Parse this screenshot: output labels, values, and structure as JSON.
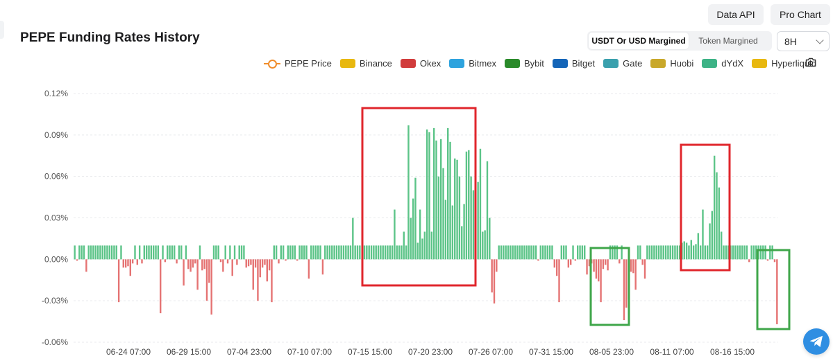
{
  "title": "PEPE Funding Rates History",
  "buttons": {
    "data_api": "Data API",
    "pro_chart": "Pro Chart"
  },
  "margin_toggle": {
    "usdt": "USDT Or USD Margined",
    "token": "Token Margined",
    "selected": "USDT Or USD Margined"
  },
  "interval": {
    "selected": "8H"
  },
  "legend": [
    {
      "label": "PEPE Price",
      "color": "#f08c2a",
      "kind": "line"
    },
    {
      "label": "Binance",
      "color": "#e8b80f",
      "kind": "bar"
    },
    {
      "label": "Okex",
      "color": "#d13c3c",
      "kind": "bar"
    },
    {
      "label": "Bitmex",
      "color": "#2ea3de",
      "kind": "bar"
    },
    {
      "label": "Bybit",
      "color": "#2a8a2a",
      "kind": "bar"
    },
    {
      "label": "Bitget",
      "color": "#1465b8",
      "kind": "bar"
    },
    {
      "label": "Gate",
      "color": "#3aa0ad",
      "kind": "bar"
    },
    {
      "label": "Huobi",
      "color": "#c9a82a",
      "kind": "bar"
    },
    {
      "label": "dYdX",
      "color": "#3db386",
      "kind": "bar"
    },
    {
      "label": "Hyperliquid",
      "color": "#e8b80f",
      "kind": "bar"
    }
  ],
  "chart_data": {
    "type": "bar",
    "title": "PEPE Funding Rates History",
    "series_name": "dYdX",
    "y_unit": "%",
    "ylim": [
      -0.06,
      0.12
    ],
    "y_ticks": [
      "0.12%",
      "0.09%",
      "0.06%",
      "0.03%",
      "0.00%",
      "-0.03%",
      "-0.06%"
    ],
    "x_ticks": [
      "06-24 07:00",
      "06-29 15:00",
      "07-04 23:00",
      "07-10 07:00",
      "07-15 15:00",
      "07-20 23:00",
      "07-26 07:00",
      "07-31 15:00",
      "08-05 23:00",
      "08-11 07:00",
      "08-16 15:00"
    ],
    "positive_color": "#5cc488",
    "negative_color": "#e57373",
    "grid": true,
    "baseline_positive_value": 0.01,
    "values": [
      0.01,
      -0.001,
      0.01,
      0.01,
      0.01,
      -0.009,
      0.01,
      0.01,
      0.01,
      0.01,
      0.01,
      0.01,
      0.01,
      0.01,
      0.01,
      0.01,
      0.01,
      0.01,
      0.01,
      -0.031,
      0.01,
      -0.006,
      -0.006,
      -0.005,
      -0.012,
      -0.003,
      0.01,
      -0.004,
      0.01,
      -0.003,
      0.01,
      0.01,
      0.01,
      0.01,
      0.01,
      0.01,
      0.01,
      -0.039,
      0.01,
      -0.002,
      0.01,
      0.01,
      0.01,
      0.01,
      -0.003,
      0.01,
      0.01,
      -0.019,
      0.01,
      -0.007,
      -0.009,
      -0.006,
      -0.003,
      -0.022,
      0.01,
      -0.008,
      -0.007,
      -0.03,
      -0.017,
      -0.04,
      0.01,
      0.01,
      0.01,
      -0.002,
      -0.009,
      0.01,
      -0.003,
      0.01,
      -0.012,
      0.01,
      -0.004,
      0.01,
      0.01,
      0.01,
      -0.006,
      -0.005,
      -0.004,
      -0.022,
      -0.006,
      -0.03,
      -0.013,
      -0.006,
      -0.004,
      -0.016,
      -0.008,
      -0.031,
      0.01,
      0.01,
      -0.003,
      0.01,
      0.01,
      -0.001,
      0.01,
      0.01,
      0.01,
      0.01,
      -0.001,
      0.01,
      0.01,
      0.01,
      0.01,
      -0.014,
      0.01,
      0.01,
      0.01,
      0.01,
      0.01,
      -0.011,
      0.01,
      0.01,
      0.01,
      0.01,
      0.01,
      0.01,
      0.01,
      0.01,
      0.01,
      0.01,
      0.01,
      0.01,
      0.03,
      0.01,
      0.01,
      0.01,
      0.01,
      0.01,
      0.01,
      0.01,
      0.01,
      0.01,
      0.01,
      0.01,
      0.01,
      0.01,
      0.01,
      0.01,
      0.01,
      0.01,
      0.036,
      0.01,
      0.01,
      0.01,
      0.02,
      0.01,
      0.097,
      0.03,
      0.044,
      0.059,
      0.012,
      0.036,
      0.015,
      0.02,
      0.094,
      0.092,
      0.02,
      0.095,
      0.086,
      0.06,
      0.087,
      0.066,
      0.043,
      0.095,
      0.085,
      0.039,
      0.073,
      0.072,
      0.06,
      0.024,
      0.04,
      0.078,
      0.079,
      0.06,
      0.05,
      0.034,
      0.056,
      0.08,
      0.02,
      0.021,
      0.071,
      0.03,
      -0.024,
      -0.032,
      -0.009,
      0.01,
      0.01,
      0.01,
      0.01,
      0.01,
      0.01,
      0.01,
      0.01,
      0.01,
      0.01,
      0.01,
      0.01,
      0.01,
      0.01,
      0.01,
      0.01,
      0.01,
      -0.001,
      0.01,
      0.01,
      0.01,
      0.01,
      0.01,
      0.01,
      -0.006,
      -0.012,
      -0.031,
      0.01,
      0.01,
      0.01,
      -0.006,
      -0.004,
      0.01,
      -0.001,
      0.01,
      0.01,
      0.01,
      0.01,
      -0.011,
      -0.005,
      -0.003,
      -0.009,
      -0.014,
      -0.016,
      -0.031,
      -0.007,
      -0.004,
      -0.008,
      0.01,
      0.01,
      0.01,
      0.01,
      -0.003,
      0.01,
      -0.044,
      -0.035,
      -0.029,
      -0.009,
      -0.01,
      -0.022,
      0.01,
      0.01,
      -0.004,
      -0.014,
      0.01,
      0.01,
      0.01,
      0.01,
      0.01,
      0.01,
      0.01,
      0.01,
      0.01,
      0.01,
      0.01,
      0.01,
      0.01,
      0.01,
      0.01,
      0.012,
      0.013,
      0.012,
      0.01,
      0.014,
      0.01,
      0.011,
      0.019,
      0.01,
      0.036,
      0.01,
      0.01,
      0.026,
      0.035,
      0.075,
      0.063,
      0.052,
      0.02,
      0.01,
      0.01,
      0.01,
      0.01,
      0.01,
      0.01,
      0.01,
      0.01,
      0.01,
      0.01,
      0.01,
      -0.002,
      0.01,
      0.01,
      0.01,
      0.01,
      0.01,
      0.01,
      0.01,
      -0.001,
      0.01,
      0.01,
      -0.002,
      -0.047
    ]
  }
}
